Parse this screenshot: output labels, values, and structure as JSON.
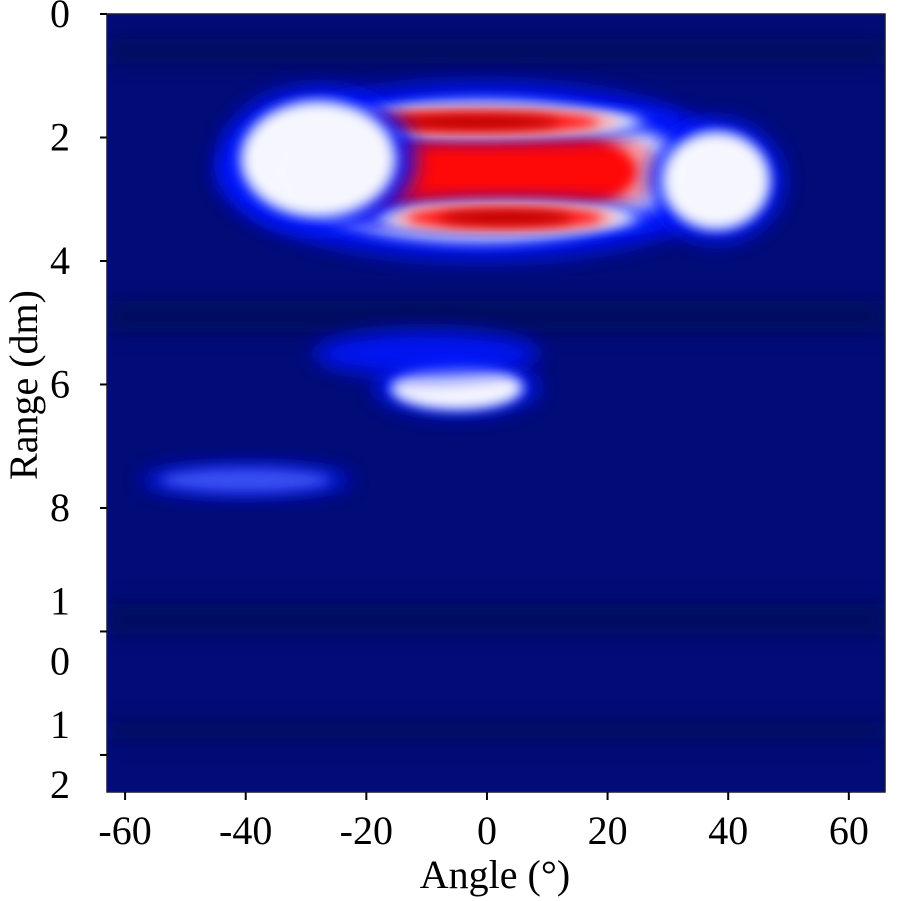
{
  "chart_data": {
    "type": "heatmap",
    "title": "",
    "xlabel": "Angle (°)",
    "ylabel": "Range (dm)",
    "xlim": [
      -63,
      66
    ],
    "ylim": [
      0,
      12.6
    ],
    "y_inverted": true,
    "x_ticks": [
      {
        "value": -60,
        "label": "-60"
      },
      {
        "value": -40,
        "label": "-40"
      },
      {
        "value": -20,
        "label": "-20"
      },
      {
        "value": 0,
        "label": "0"
      },
      {
        "value": 20,
        "label": "20"
      },
      {
        "value": 40,
        "label": "40"
      },
      {
        "value": 60,
        "label": "60"
      }
    ],
    "y_ticks": [
      {
        "value": 0,
        "lines": [
          "0"
        ]
      },
      {
        "value": 2,
        "lines": [
          "2"
        ]
      },
      {
        "value": 4,
        "lines": [
          "4"
        ]
      },
      {
        "value": 6,
        "lines": [
          "6"
        ]
      },
      {
        "value": 8,
        "lines": [
          "8"
        ]
      },
      {
        "value": 10,
        "lines": [
          "1",
          "0"
        ]
      },
      {
        "value": 12,
        "lines": [
          "1",
          "2"
        ]
      }
    ],
    "colormap": {
      "low": "#000a4a",
      "mid_low": "#0014ff",
      "mid": "#ffffff",
      "high": "#ff0000",
      "peak": "#b00000"
    },
    "background_color": "#010c78",
    "regions": [
      {
        "angle_center": -1,
        "angle_half_width": 35,
        "range_center": 2.55,
        "range_half_height": 1.15,
        "intensity": 0.8
      },
      {
        "angle_center": -2,
        "angle_half_width": 28,
        "range_center": 1.75,
        "range_half_height": 0.22,
        "intensity": 1.0
      },
      {
        "angle_center": 3,
        "angle_half_width": 22,
        "range_center": 3.3,
        "range_half_height": 0.22,
        "intensity": 1.0
      },
      {
        "angle_center": -28,
        "angle_half_width": 13,
        "range_center": 2.35,
        "range_half_height": 0.95,
        "intensity": 0.45
      },
      {
        "angle_center": 38,
        "angle_half_width": 9,
        "range_center": 2.7,
        "range_half_height": 0.8,
        "intensity": 0.45
      },
      {
        "angle_center": -5,
        "angle_half_width": 11,
        "range_center": 6.05,
        "range_half_height": 0.35,
        "intensity": 0.5
      },
      {
        "angle_center": -40,
        "angle_half_width": 14,
        "range_center": 7.55,
        "range_half_height": 0.2,
        "intensity": 0.2
      },
      {
        "angle_center": -10,
        "angle_half_width": 15,
        "range_center": 5.5,
        "range_half_height": 0.3,
        "intensity": 0.12
      }
    ]
  }
}
